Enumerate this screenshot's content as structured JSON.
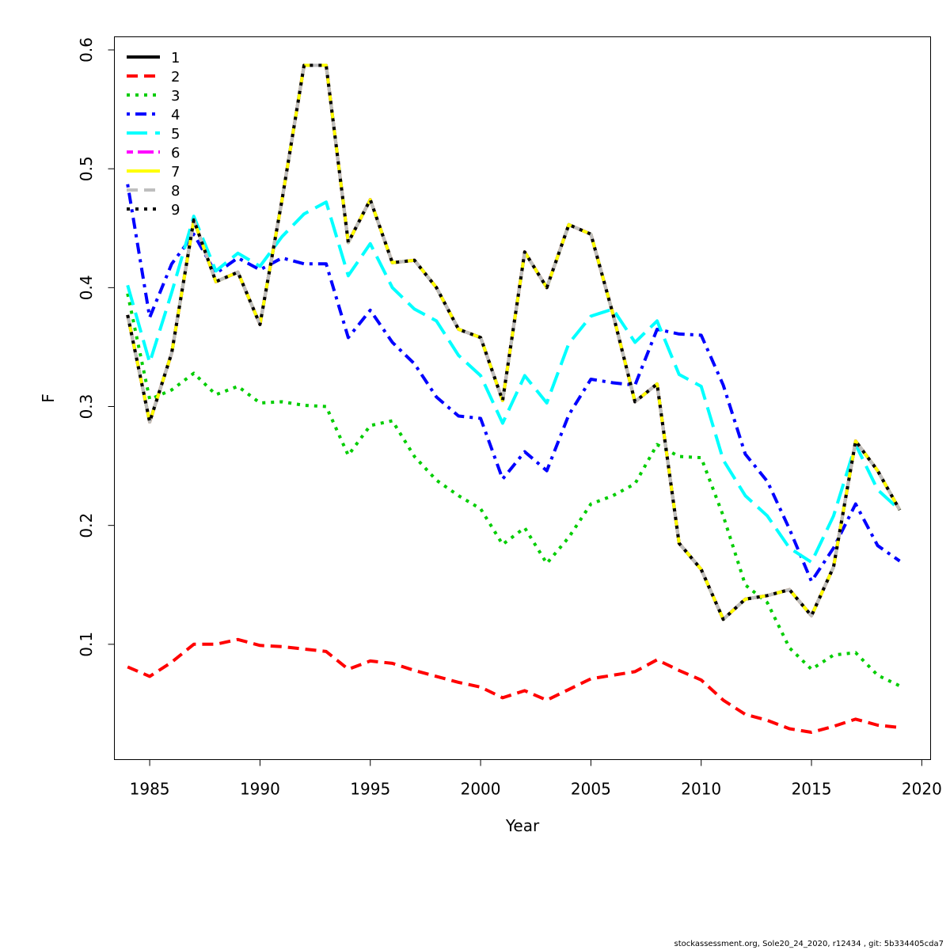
{
  "footer": "stockassessment.org, Sole20_24_2020, r12434 , git: 5b334405cda7",
  "chart_data": {
    "type": "line",
    "xlabel": "Year",
    "ylabel": "F",
    "xlim": [
      1983.4,
      2020.4
    ],
    "ylim": [
      0.003,
      0.611
    ],
    "xticks": [
      1985,
      1990,
      1995,
      2000,
      2005,
      2010,
      2015,
      2020
    ],
    "yticks": [
      0.1,
      0.2,
      0.3,
      0.4,
      0.5,
      0.6
    ],
    "grid": false,
    "legend_position": "top-left",
    "x": [
      1984,
      1985,
      1986,
      1987,
      1988,
      1989,
      1990,
      1991,
      1992,
      1993,
      1994,
      1995,
      1996,
      1997,
      1998,
      1999,
      2000,
      2001,
      2002,
      2003,
      2004,
      2005,
      2006,
      2007,
      2008,
      2009,
      2010,
      2011,
      2012,
      2013,
      2014,
      2015,
      2016,
      2017,
      2018,
      2019
    ],
    "series": [
      {
        "name": "1",
        "color": "#000000",
        "dash": "solid",
        "values": [
          0.377,
          0.287,
          0.345,
          0.457,
          0.405,
          0.413,
          0.369,
          0.474,
          0.587,
          0.587,
          0.438,
          0.474,
          0.421,
          0.423,
          0.4,
          0.365,
          0.358,
          0.305,
          0.43,
          0.4,
          0.453,
          0.445,
          0.378,
          0.304,
          0.319,
          0.185,
          0.163,
          0.121,
          0.138,
          0.141,
          0.146,
          0.124,
          0.165,
          0.271,
          0.246,
          0.213
        ]
      },
      {
        "name": "2",
        "color": "#ff0000",
        "dash": "dashed",
        "values": [
          0.081,
          0.073,
          0.085,
          0.1,
          0.1,
          0.104,
          0.099,
          0.098,
          0.096,
          0.094,
          0.079,
          0.086,
          0.084,
          0.078,
          0.073,
          0.068,
          0.064,
          0.055,
          0.061,
          0.053,
          0.062,
          0.071,
          0.074,
          0.077,
          0.087,
          0.078,
          0.07,
          0.053,
          0.041,
          0.036,
          0.029,
          0.026,
          0.031,
          0.037,
          0.032,
          0.03
        ]
      },
      {
        "name": "3",
        "color": "#00cd00",
        "dash": "dotted",
        "values": [
          0.395,
          0.306,
          0.314,
          0.328,
          0.31,
          0.317,
          0.303,
          0.304,
          0.301,
          0.3,
          0.259,
          0.284,
          0.288,
          0.258,
          0.238,
          0.225,
          0.214,
          0.184,
          0.198,
          0.168,
          0.19,
          0.218,
          0.225,
          0.235,
          0.268,
          0.258,
          0.257,
          0.208,
          0.15,
          0.135,
          0.097,
          0.079,
          0.091,
          0.093,
          0.074,
          0.065
        ]
      },
      {
        "name": "4",
        "color": "#0000ff",
        "dash": "dotdash",
        "values": [
          0.487,
          0.375,
          0.42,
          0.445,
          0.412,
          0.425,
          0.415,
          0.425,
          0.42,
          0.42,
          0.358,
          0.381,
          0.354,
          0.336,
          0.308,
          0.292,
          0.29,
          0.239,
          0.262,
          0.246,
          0.293,
          0.323,
          0.32,
          0.318,
          0.365,
          0.361,
          0.36,
          0.318,
          0.26,
          0.237,
          0.197,
          0.153,
          0.181,
          0.218,
          0.183,
          0.17
        ]
      },
      {
        "name": "5",
        "color": "#00ffff",
        "dash": "longdash",
        "values": [
          0.402,
          0.337,
          0.396,
          0.46,
          0.414,
          0.429,
          0.418,
          0.443,
          0.462,
          0.472,
          0.41,
          0.437,
          0.4,
          0.382,
          0.372,
          0.343,
          0.326,
          0.286,
          0.326,
          0.303,
          0.353,
          0.376,
          0.382,
          0.354,
          0.372,
          0.327,
          0.317,
          0.255,
          0.225,
          0.208,
          0.181,
          0.169,
          0.208,
          0.268,
          0.23,
          0.213
        ]
      },
      {
        "name": "6",
        "color": "#ff00ff",
        "dash": "twodash",
        "values": [
          0.377,
          0.287,
          0.345,
          0.457,
          0.405,
          0.413,
          0.369,
          0.474,
          0.587,
          0.587,
          0.438,
          0.474,
          0.421,
          0.423,
          0.4,
          0.365,
          0.358,
          0.305,
          0.43,
          0.4,
          0.453,
          0.445,
          0.378,
          0.304,
          0.319,
          0.185,
          0.163,
          0.121,
          0.138,
          0.141,
          0.146,
          0.124,
          0.165,
          0.271,
          0.246,
          0.213
        ]
      },
      {
        "name": "7",
        "color": "#ffff00",
        "dash": "solid",
        "values": [
          0.377,
          0.287,
          0.345,
          0.457,
          0.405,
          0.413,
          0.369,
          0.474,
          0.587,
          0.587,
          0.438,
          0.474,
          0.421,
          0.423,
          0.4,
          0.365,
          0.358,
          0.305,
          0.43,
          0.4,
          0.453,
          0.445,
          0.378,
          0.304,
          0.319,
          0.185,
          0.163,
          0.121,
          0.138,
          0.141,
          0.146,
          0.124,
          0.165,
          0.271,
          0.246,
          0.213
        ]
      },
      {
        "name": "8",
        "color": "#bebebe",
        "dash": "dashed",
        "values": [
          0.377,
          0.287,
          0.345,
          0.457,
          0.405,
          0.413,
          0.369,
          0.474,
          0.587,
          0.587,
          0.438,
          0.474,
          0.421,
          0.423,
          0.4,
          0.365,
          0.358,
          0.305,
          0.43,
          0.4,
          0.453,
          0.445,
          0.378,
          0.304,
          0.319,
          0.185,
          0.163,
          0.121,
          0.138,
          0.141,
          0.146,
          0.124,
          0.165,
          0.271,
          0.246,
          0.213
        ]
      },
      {
        "name": "9",
        "color": "#000000",
        "dash": "dotted",
        "values": [
          0.377,
          0.287,
          0.345,
          0.457,
          0.405,
          0.413,
          0.369,
          0.474,
          0.587,
          0.587,
          0.438,
          0.474,
          0.421,
          0.423,
          0.4,
          0.365,
          0.358,
          0.305,
          0.43,
          0.4,
          0.453,
          0.445,
          0.378,
          0.304,
          0.319,
          0.185,
          0.163,
          0.121,
          0.138,
          0.141,
          0.146,
          0.124,
          0.165,
          0.271,
          0.246,
          0.213
        ]
      }
    ]
  }
}
